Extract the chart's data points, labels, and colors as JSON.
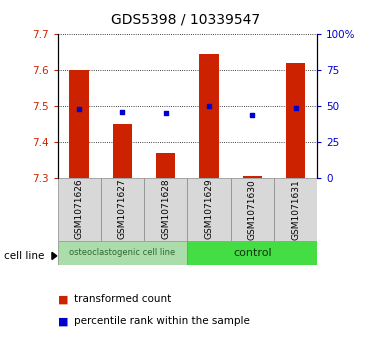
{
  "title": "GDS5398 / 10339547",
  "samples": [
    "GSM1071626",
    "GSM1071627",
    "GSM1071628",
    "GSM1071629",
    "GSM1071630",
    "GSM1071631"
  ],
  "bar_values": [
    7.6,
    7.45,
    7.37,
    7.645,
    7.305,
    7.62
  ],
  "bar_base": 7.3,
  "percentile_values": [
    48,
    46,
    45,
    50,
    44,
    49
  ],
  "ylim_left": [
    7.3,
    7.7
  ],
  "ylim_right": [
    0,
    100
  ],
  "yticks_left": [
    7.3,
    7.4,
    7.5,
    7.6,
    7.7
  ],
  "yticks_right": [
    0,
    25,
    50,
    75,
    100
  ],
  "ytick_labels_right": [
    "0",
    "25",
    "50",
    "75",
    "100%"
  ],
  "bar_color": "#cc2200",
  "dot_color": "#0000cc",
  "group1_label": "osteoclastogenic cell line",
  "group2_label": "control",
  "group1_indices": [
    0,
    1,
    2
  ],
  "group2_indices": [
    3,
    4,
    5
  ],
  "group1_color": "#aaddaa",
  "group2_color": "#44dd44",
  "cell_line_label": "cell line",
  "legend_bar_label": "transformed count",
  "legend_dot_label": "percentile rank within the sample",
  "title_fontsize": 10,
  "tick_fontsize": 7.5,
  "sample_fontsize": 6.5,
  "group_fontsize1": 6,
  "group_fontsize2": 8
}
